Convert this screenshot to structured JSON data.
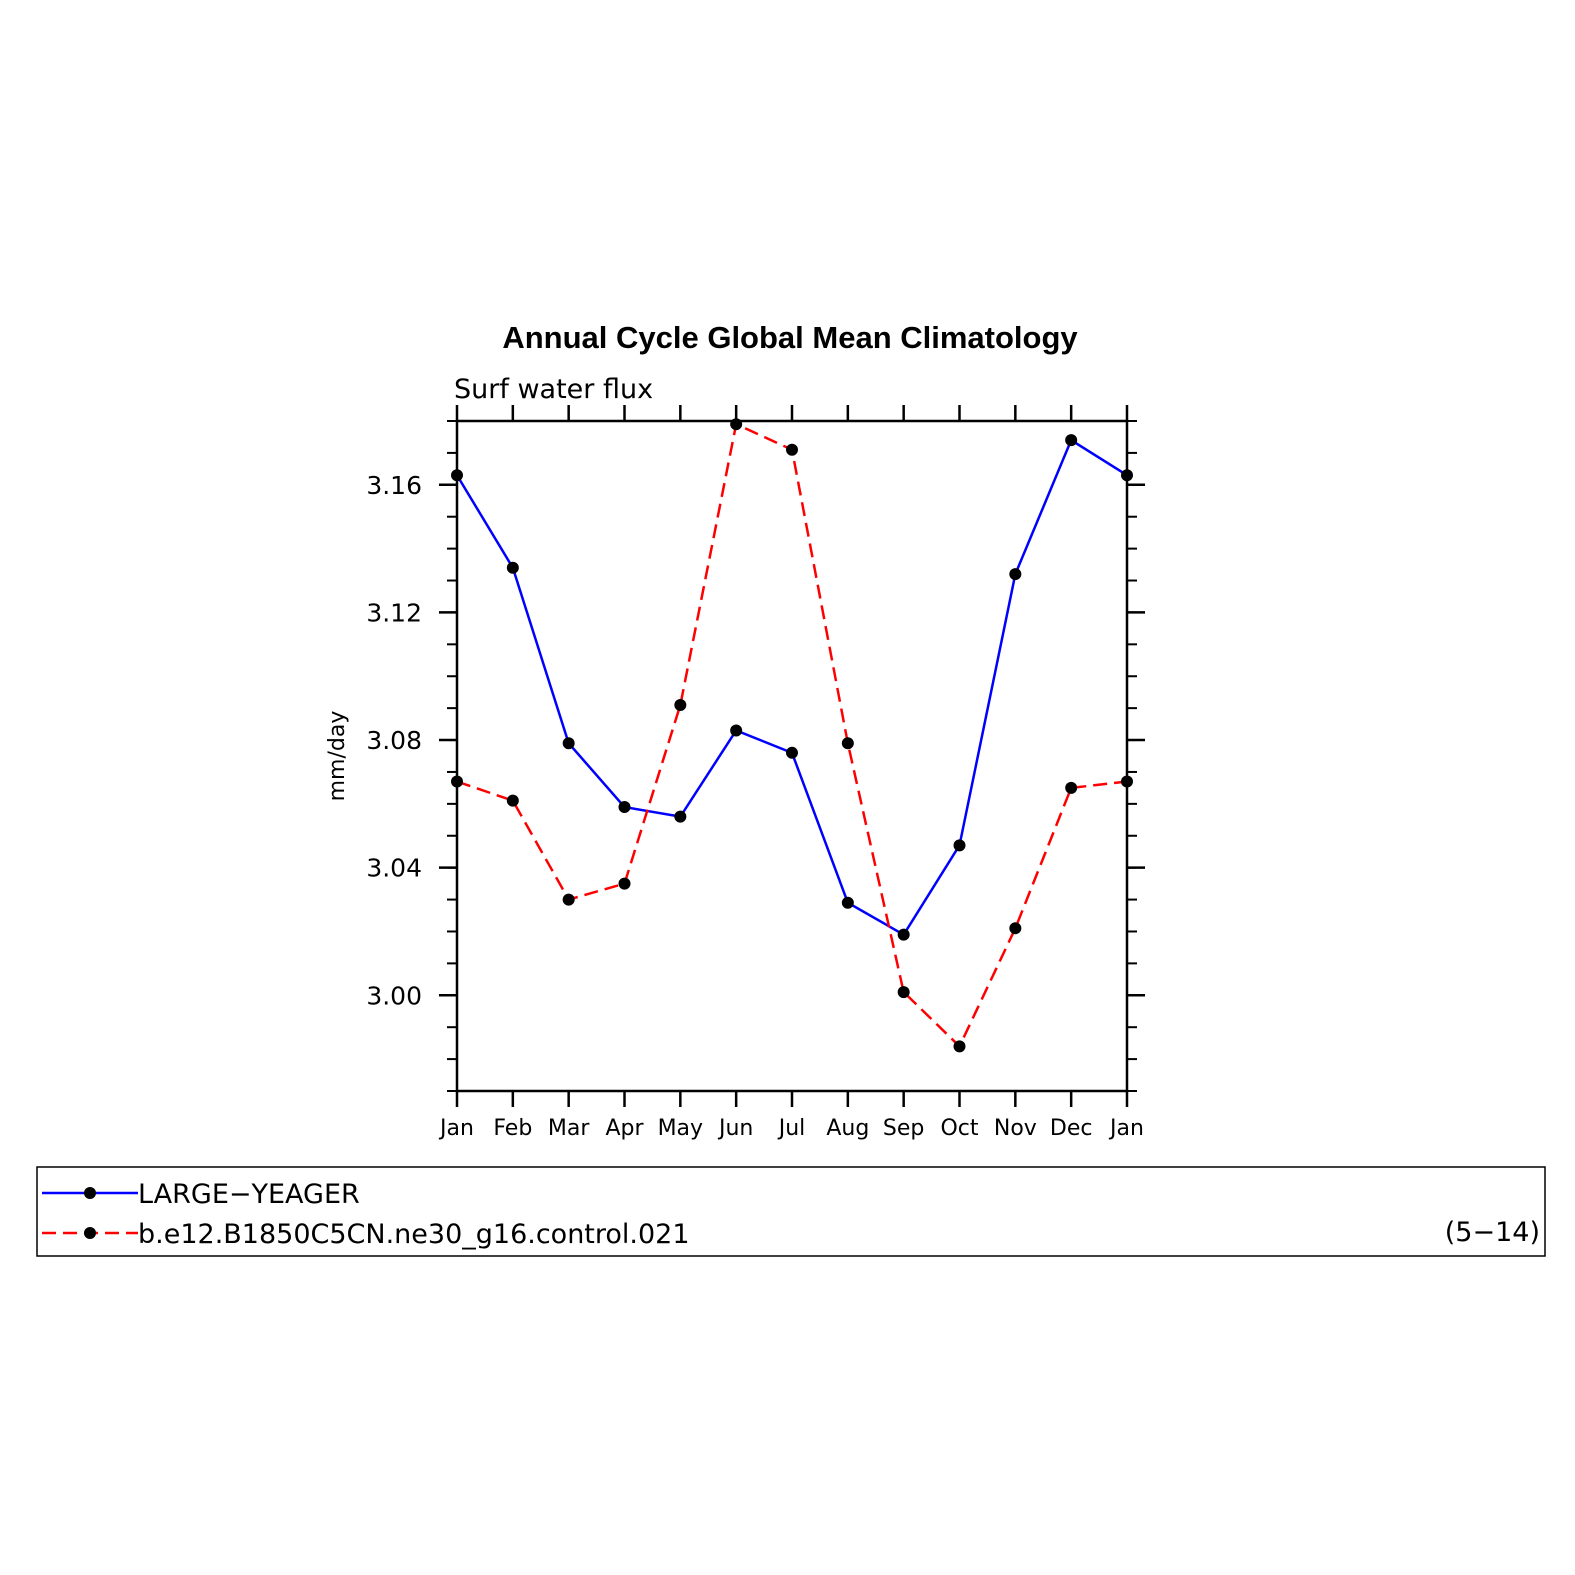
{
  "chart_data": {
    "type": "line",
    "title": "Annual Cycle Global Mean Climatology",
    "subtitle": "Surf water flux",
    "ylabel": "mm/day",
    "xlabel": "",
    "categories": [
      "Jan",
      "Feb",
      "Mar",
      "Apr",
      "May",
      "Jun",
      "Jul",
      "Aug",
      "Sep",
      "Oct",
      "Nov",
      "Dec",
      "Jan"
    ],
    "ylim": [
      2.97,
      3.18
    ],
    "yticks": [
      3.0,
      3.04,
      3.08,
      3.12,
      3.16
    ],
    "ytick_labels": [
      "3.00",
      "3.04",
      "3.08",
      "3.12",
      "3.16"
    ],
    "grid": false,
    "legend_position": "bottom",
    "series": [
      {
        "name": "LARGE−YEAGER",
        "color": "#0000ff",
        "dash": "solid",
        "marker": "filled-circle",
        "values": [
          3.163,
          3.134,
          3.079,
          3.059,
          3.056,
          3.083,
          3.076,
          3.029,
          3.019,
          3.047,
          3.132,
          3.174,
          3.163
        ]
      },
      {
        "name": "b.e12.B1850C5CN.ne30_g16.control.021",
        "color": "#ff0000",
        "dash": "dashed",
        "marker": "filled-circle",
        "values": [
          3.067,
          3.061,
          3.03,
          3.035,
          3.091,
          3.179,
          3.171,
          3.079,
          3.001,
          2.984,
          3.021,
          3.065,
          3.067
        ]
      }
    ],
    "legend_note": "(5−14)"
  }
}
